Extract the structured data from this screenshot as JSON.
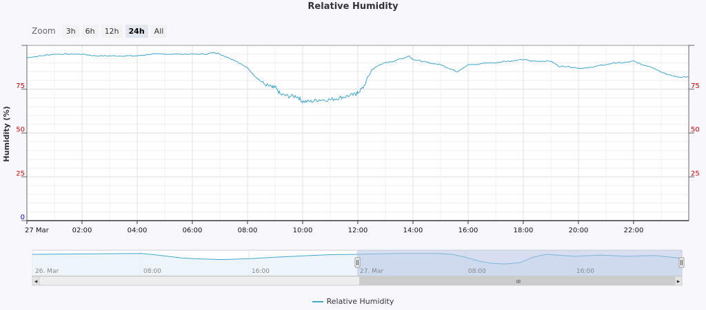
{
  "chart_data": {
    "type": "line",
    "title": "Relative Humidity",
    "ylabel": "Humidity (%)",
    "xlabel": "",
    "ylim": [
      0,
      100
    ],
    "y_ticks_left": [
      "0",
      "25",
      "50",
      "75"
    ],
    "y_ticks_right": [
      "25",
      "50",
      "75"
    ],
    "x_ticks": [
      "27 Mar",
      "02:00",
      "04:00",
      "06:00",
      "08:00",
      "10:00",
      "12:00",
      "14:00",
      "16:00",
      "18:00",
      "20:00",
      "22:00"
    ],
    "x_tick_hours": [
      0,
      2,
      4,
      6,
      8,
      10,
      12,
      14,
      16,
      18,
      20,
      22
    ],
    "xlim_hours": [
      0,
      24
    ],
    "grid": true,
    "legend_position": "bottom-center",
    "series": [
      {
        "name": "Relative Humidity",
        "color": "#3ea7cc",
        "x_hours": [
          0,
          0.5,
          1.0,
          1.5,
          2.0,
          2.5,
          3.0,
          3.5,
          4.0,
          4.5,
          5.0,
          5.5,
          6.0,
          6.5,
          6.8,
          7.0,
          7.3,
          7.6,
          8.0,
          8.3,
          8.6,
          8.9,
          9.0,
          9.2,
          9.5,
          9.8,
          10.0,
          10.3,
          10.6,
          11.0,
          11.3,
          11.6,
          11.9,
          12.0,
          12.2,
          12.5,
          12.8,
          13.0,
          13.3,
          13.7,
          13.85,
          14.0,
          14.3,
          14.6,
          15.0,
          15.3,
          15.6,
          16.0,
          16.3,
          16.6,
          17.0,
          17.3,
          17.6,
          18.0,
          18.3,
          18.6,
          19.0,
          19.3,
          19.6,
          20.0,
          20.3,
          20.6,
          21.0,
          21.3,
          21.6,
          22.0,
          22.3,
          22.6,
          23.0,
          23.3,
          23.6,
          24.0
        ],
        "y": [
          93,
          94,
          95,
          95,
          95,
          94,
          94,
          94,
          94,
          95,
          95,
          95,
          95,
          95,
          96,
          95,
          93,
          91,
          87,
          82,
          78,
          76,
          76,
          72,
          71,
          71,
          68,
          68,
          69,
          69,
          70,
          71,
          72,
          73,
          76,
          86,
          89,
          90,
          91,
          93,
          94,
          92,
          91,
          90,
          89,
          87,
          85,
          89,
          89,
          90,
          90,
          91,
          91,
          92,
          91,
          91,
          91,
          88,
          88,
          87,
          87,
          88,
          89,
          90,
          90,
          91,
          89,
          88,
          85,
          83,
          82,
          82
        ]
      }
    ],
    "navigator": {
      "x_labels": [
        "26. Mar",
        "08:00",
        "16:00",
        "27. Mar",
        "08:00",
        "16:00"
      ],
      "x_label_hours": [
        -24,
        -16,
        -8,
        0,
        8,
        16
      ],
      "range_hours": [
        -24,
        24
      ],
      "selected_hours": [
        0,
        24
      ],
      "x_hours": [
        -24,
        -20,
        -16,
        -15,
        -14,
        -13,
        -12,
        -10,
        -8,
        -6,
        -4,
        -2,
        0,
        3,
        6,
        7,
        8,
        9,
        10,
        11,
        12,
        13,
        14,
        16,
        18,
        20,
        22,
        24
      ],
      "y": [
        93,
        94,
        95,
        92,
        88,
        84,
        82,
        80,
        82,
        86,
        89,
        92,
        93,
        95,
        95,
        93,
        86,
        76,
        70,
        69,
        72,
        86,
        93,
        88,
        91,
        88,
        90,
        83
      ]
    }
  },
  "zoom": {
    "label": "Zoom",
    "buttons": [
      "3h",
      "6h",
      "12h",
      "24h",
      "All"
    ],
    "active": "24h"
  },
  "legend": {
    "label": "Relative Humidity"
  },
  "scrollbar": {
    "left_arrow": "◂",
    "right_arrow": "▸",
    "grip": "III"
  },
  "colors": {
    "line": "#3ea7cc",
    "left_axis_labels": "#cc0000",
    "right_axis_labels": "#cc0000",
    "zero_label": "#0000cc",
    "navigator_mask": "#b4c3e4"
  }
}
